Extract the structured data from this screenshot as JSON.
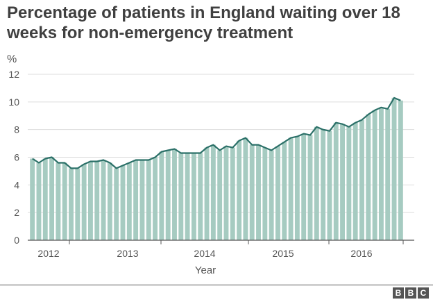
{
  "chart_data": {
    "type": "bar",
    "title": "Percentage of patients in England waiting over 18 weeks for non-emergency treatment",
    "ylabel": "%",
    "xlabel": "Year",
    "ylim": [
      0,
      12
    ],
    "yticks": [
      "0",
      "2",
      "4",
      "6",
      "8",
      "10",
      "12"
    ],
    "year_labels": [
      "2012",
      "2013",
      "2014",
      "2015",
      "2016"
    ],
    "grid": true,
    "colors": {
      "bar": "#a6cbc1",
      "line": "#2b7068",
      "grid": "#dddddd",
      "axis": "#555555"
    },
    "series": [
      {
        "values": [
          5.9,
          5.6,
          5.9,
          6.0,
          5.6,
          5.6,
          5.2,
          5.2,
          5.5,
          5.7,
          5.7,
          5.8,
          5.6,
          5.2,
          5.4,
          5.6,
          5.8,
          5.8,
          5.8,
          6.0,
          6.4,
          6.5,
          6.6,
          6.3,
          6.3,
          6.3,
          6.3,
          6.7,
          6.9,
          6.5,
          6.8,
          6.7,
          7.2,
          7.4,
          6.9,
          6.9,
          6.7,
          6.5,
          6.8,
          7.1,
          7.4,
          7.5,
          7.7,
          7.6,
          8.2,
          8.0,
          7.9,
          8.5,
          8.4,
          8.2,
          8.5,
          8.7,
          9.1,
          9.4,
          9.6,
          9.5,
          10.3,
          10.1
        ]
      }
    ]
  },
  "footer": {
    "logo_letters": [
      "B",
      "B",
      "C"
    ]
  }
}
